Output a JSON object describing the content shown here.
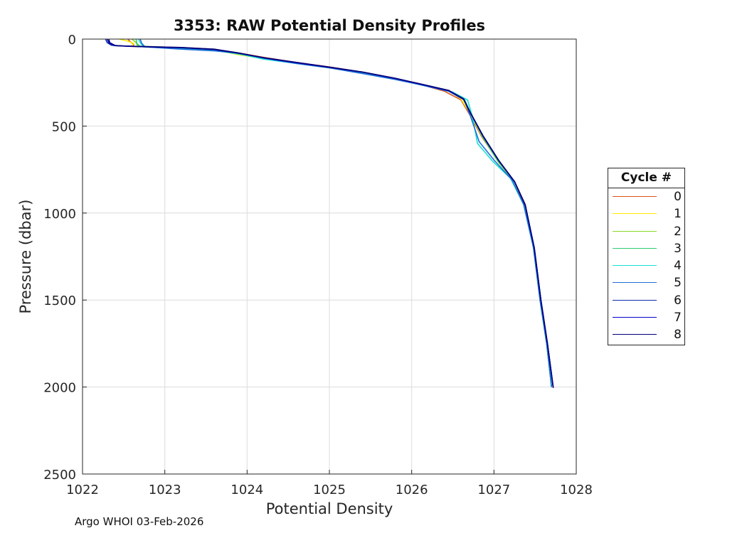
{
  "chart_data": {
    "type": "line",
    "title": "3353: RAW Potential Density Profiles",
    "xlabel": "Potential Density",
    "ylabel": "Pressure (dbar)",
    "xlim": [
      1022,
      1028
    ],
    "ylim": [
      0,
      2500
    ],
    "y_reversed": true,
    "grid": true,
    "xticks": [
      1022,
      1023,
      1024,
      1025,
      1026,
      1027,
      1028
    ],
    "yticks": [
      0,
      500,
      1000,
      1500,
      2000,
      2500
    ],
    "legend": {
      "title": "Cycle #",
      "placement": "right"
    },
    "series": [
      {
        "name": "0",
        "color": "#d95319",
        "points": [
          [
            1022.55,
            0
          ],
          [
            1022.58,
            15
          ],
          [
            1022.62,
            30
          ],
          [
            1022.62,
            42
          ],
          [
            1023.2,
            48
          ],
          [
            1023.6,
            58
          ],
          [
            1023.9,
            80
          ],
          [
            1024.2,
            105
          ],
          [
            1024.6,
            135
          ],
          [
            1025.0,
            160
          ],
          [
            1025.4,
            190
          ],
          [
            1025.8,
            225
          ],
          [
            1026.1,
            260
          ],
          [
            1026.4,
            300
          ],
          [
            1026.6,
            350
          ],
          [
            1026.7,
            430
          ],
          [
            1026.85,
            560
          ],
          [
            1027.05,
            700
          ],
          [
            1027.25,
            820
          ],
          [
            1027.38,
            950
          ],
          [
            1027.48,
            1200
          ],
          [
            1027.56,
            1500
          ],
          [
            1027.64,
            1750
          ],
          [
            1027.7,
            2000
          ]
        ]
      },
      {
        "name": "1",
        "color": "#ffea00",
        "points": [
          [
            1022.45,
            0
          ],
          [
            1022.55,
            12
          ],
          [
            1022.62,
            25
          ],
          [
            1022.6,
            42
          ],
          [
            1023.2,
            50
          ],
          [
            1023.6,
            62
          ],
          [
            1023.9,
            90
          ],
          [
            1024.2,
            112
          ],
          [
            1024.6,
            140
          ],
          [
            1025.0,
            165
          ],
          [
            1025.4,
            195
          ],
          [
            1025.8,
            230
          ],
          [
            1026.15,
            265
          ],
          [
            1026.45,
            295
          ],
          [
            1026.6,
            345
          ],
          [
            1026.7,
            420
          ],
          [
            1026.85,
            555
          ],
          [
            1027.05,
            700
          ],
          [
            1027.25,
            820
          ],
          [
            1027.37,
            960
          ],
          [
            1027.48,
            1200
          ],
          [
            1027.56,
            1500
          ],
          [
            1027.64,
            1750
          ],
          [
            1027.7,
            2000
          ]
        ]
      },
      {
        "name": "2",
        "color": "#8ed627",
        "points": [
          [
            1022.6,
            0
          ],
          [
            1022.65,
            20
          ],
          [
            1022.67,
            40
          ],
          [
            1023.2,
            50
          ],
          [
            1023.6,
            62
          ],
          [
            1023.9,
            88
          ],
          [
            1024.2,
            108
          ],
          [
            1024.6,
            138
          ],
          [
            1025.0,
            162
          ],
          [
            1025.4,
            192
          ],
          [
            1025.8,
            228
          ],
          [
            1026.1,
            262
          ],
          [
            1026.42,
            292
          ],
          [
            1026.62,
            340
          ],
          [
            1026.72,
            425
          ],
          [
            1026.86,
            560
          ],
          [
            1027.05,
            705
          ],
          [
            1027.25,
            822
          ],
          [
            1027.38,
            955
          ],
          [
            1027.48,
            1200
          ],
          [
            1027.56,
            1500
          ],
          [
            1027.64,
            1750
          ],
          [
            1027.7,
            2000
          ]
        ]
      },
      {
        "name": "3",
        "color": "#2dcc70",
        "points": [
          [
            1022.65,
            0
          ],
          [
            1022.66,
            25
          ],
          [
            1022.7,
            42
          ],
          [
            1023.2,
            52
          ],
          [
            1023.6,
            64
          ],
          [
            1023.9,
            85
          ],
          [
            1024.2,
            110
          ],
          [
            1024.6,
            138
          ],
          [
            1025.0,
            163
          ],
          [
            1025.4,
            193
          ],
          [
            1025.8,
            228
          ],
          [
            1026.1,
            262
          ],
          [
            1026.45,
            298
          ],
          [
            1026.64,
            345
          ],
          [
            1026.72,
            430
          ],
          [
            1026.86,
            560
          ],
          [
            1027.05,
            700
          ],
          [
            1027.25,
            820
          ],
          [
            1027.38,
            955
          ],
          [
            1027.48,
            1200
          ],
          [
            1027.56,
            1500
          ],
          [
            1027.64,
            1750
          ],
          [
            1027.7,
            2000
          ]
        ]
      },
      {
        "name": "4",
        "color": "#19e0d0",
        "points": [
          [
            1022.68,
            0
          ],
          [
            1022.7,
            20
          ],
          [
            1022.74,
            45
          ],
          [
            1023.2,
            55
          ],
          [
            1023.6,
            66
          ],
          [
            1023.9,
            85
          ],
          [
            1024.2,
            115
          ],
          [
            1024.6,
            140
          ],
          [
            1025.0,
            165
          ],
          [
            1025.4,
            193
          ],
          [
            1025.8,
            230
          ],
          [
            1026.15,
            265
          ],
          [
            1026.5,
            305
          ],
          [
            1026.68,
            350
          ],
          [
            1026.74,
            450
          ],
          [
            1026.8,
            600
          ],
          [
            1026.98,
            700
          ],
          [
            1027.2,
            800
          ],
          [
            1027.36,
            950
          ],
          [
            1027.48,
            1200
          ],
          [
            1027.56,
            1500
          ],
          [
            1027.64,
            1750
          ],
          [
            1027.7,
            2000
          ]
        ]
      },
      {
        "name": "5",
        "color": "#1e6fd9",
        "points": [
          [
            1022.7,
            0
          ],
          [
            1022.72,
            25
          ],
          [
            1022.76,
            45
          ],
          [
            1023.2,
            58
          ],
          [
            1023.6,
            68
          ],
          [
            1023.9,
            80
          ],
          [
            1024.2,
            110
          ],
          [
            1024.6,
            140
          ],
          [
            1025.0,
            165
          ],
          [
            1025.4,
            198
          ],
          [
            1025.8,
            232
          ],
          [
            1026.1,
            262
          ],
          [
            1026.45,
            300
          ],
          [
            1026.64,
            350
          ],
          [
            1026.72,
            450
          ],
          [
            1026.82,
            590
          ],
          [
            1027.0,
            695
          ],
          [
            1027.22,
            810
          ],
          [
            1027.36,
            950
          ],
          [
            1027.48,
            1200
          ],
          [
            1027.56,
            1500
          ],
          [
            1027.64,
            1750
          ],
          [
            1027.7,
            2000
          ]
        ]
      },
      {
        "name": "6",
        "color": "#0a2aa8",
        "points": [
          [
            1022.28,
            0
          ],
          [
            1022.3,
            20
          ],
          [
            1022.35,
            35
          ],
          [
            1022.5,
            40
          ],
          [
            1023.2,
            48
          ],
          [
            1023.6,
            58
          ],
          [
            1023.9,
            80
          ],
          [
            1024.2,
            108
          ],
          [
            1024.6,
            135
          ],
          [
            1025.0,
            162
          ],
          [
            1025.4,
            190
          ],
          [
            1025.8,
            226
          ],
          [
            1026.1,
            258
          ],
          [
            1026.45,
            296
          ],
          [
            1026.63,
            345
          ],
          [
            1026.72,
            430
          ],
          [
            1026.87,
            560
          ],
          [
            1027.06,
            700
          ],
          [
            1027.25,
            820
          ],
          [
            1027.38,
            955
          ],
          [
            1027.49,
            1200
          ],
          [
            1027.57,
            1500
          ],
          [
            1027.65,
            1750
          ],
          [
            1027.72,
            2000
          ]
        ]
      },
      {
        "name": "7",
        "color": "#0000cd",
        "points": [
          [
            1022.3,
            0
          ],
          [
            1022.32,
            20
          ],
          [
            1022.38,
            37
          ],
          [
            1022.6,
            42
          ],
          [
            1023.2,
            50
          ],
          [
            1023.6,
            60
          ],
          [
            1023.9,
            82
          ],
          [
            1024.2,
            108
          ],
          [
            1024.6,
            136
          ],
          [
            1025.0,
            162
          ],
          [
            1025.4,
            190
          ],
          [
            1025.8,
            226
          ],
          [
            1026.1,
            258
          ],
          [
            1026.45,
            296
          ],
          [
            1026.63,
            345
          ],
          [
            1026.72,
            430
          ],
          [
            1026.87,
            560
          ],
          [
            1027.06,
            700
          ],
          [
            1027.25,
            820
          ],
          [
            1027.38,
            955
          ],
          [
            1027.49,
            1200
          ],
          [
            1027.57,
            1500
          ],
          [
            1027.65,
            1750
          ],
          [
            1027.72,
            2000
          ]
        ]
      },
      {
        "name": "8",
        "color": "#00007a",
        "points": [
          [
            1022.32,
            0
          ],
          [
            1022.33,
            20
          ],
          [
            1022.4,
            38
          ],
          [
            1022.7,
            43
          ],
          [
            1023.2,
            49
          ],
          [
            1023.6,
            59
          ],
          [
            1023.9,
            81
          ],
          [
            1024.2,
            107
          ],
          [
            1024.6,
            134
          ],
          [
            1025.0,
            161
          ],
          [
            1025.4,
            189
          ],
          [
            1025.8,
            225
          ],
          [
            1026.1,
            257
          ],
          [
            1026.45,
            295
          ],
          [
            1026.63,
            343
          ],
          [
            1026.72,
            428
          ],
          [
            1026.87,
            558
          ],
          [
            1027.06,
            699
          ],
          [
            1027.25,
            819
          ],
          [
            1027.38,
            954
          ],
          [
            1027.49,
            1200
          ],
          [
            1027.57,
            1500
          ],
          [
            1027.65,
            1750
          ],
          [
            1027.72,
            2005
          ]
        ]
      }
    ]
  },
  "footer_note": "Argo WHOI 03-Feb-2026"
}
